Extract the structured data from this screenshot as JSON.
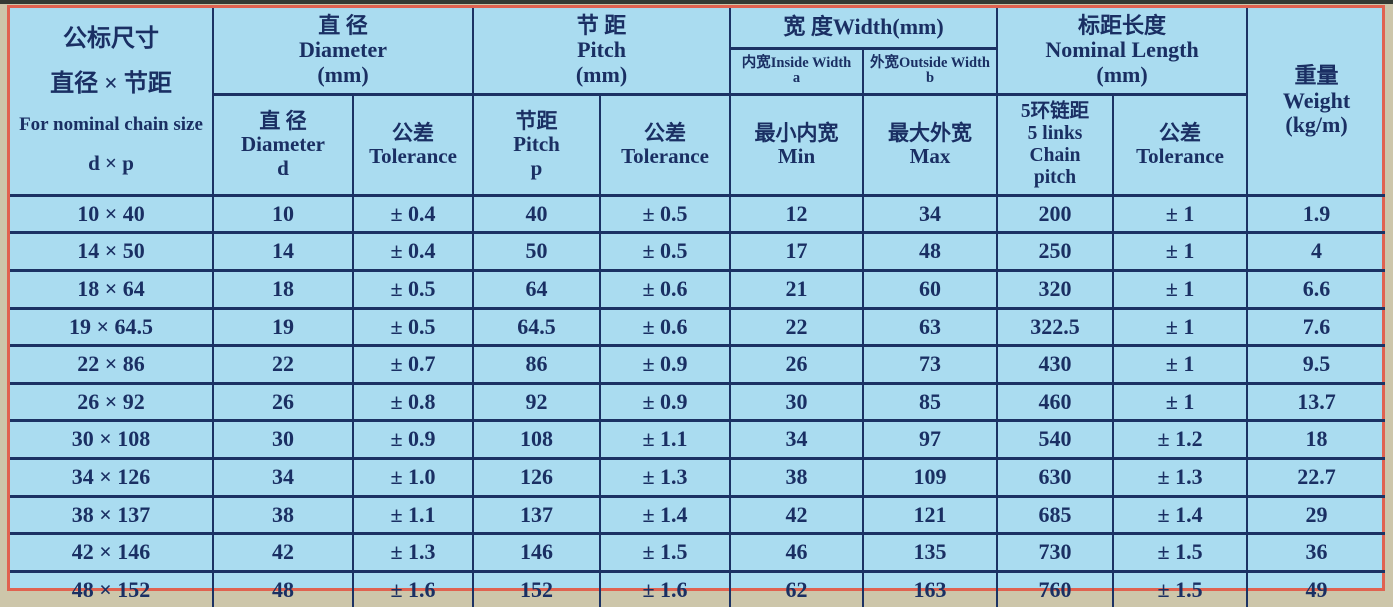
{
  "colors": {
    "cell_background": "#aadcf0",
    "grid_line": "#1c3264",
    "text": "#1a2f63",
    "outer_frame": "#e06250",
    "page_margin": "#cdc6aa"
  },
  "table": {
    "header": {
      "nominal": {
        "line1": "公标尺寸",
        "line2": "直径 × 节距",
        "line3": "For nominal chain size",
        "line4": "d × p"
      },
      "group_diameter": "直 径\nDiameter\n(mm)",
      "group_pitch": "节 距\nPitch\n(mm)",
      "group_width": "宽 度Width(mm)",
      "group_length": "标距长度\nNominal Length\n(mm)",
      "weight": "重量\nWeight\n(kg/m)",
      "width_inside": "内宽Inside Width\na",
      "width_outside": "外宽Outside Width\nb",
      "sub_diameter": "直 径\nDiameter\nd",
      "sub_diameter_tolerance": "公差\nTolerance",
      "sub_pitch": "节距\nPitch\np",
      "sub_pitch_tolerance": "公差\nTolerance",
      "sub_width_min": "最小内宽\nMin",
      "sub_width_max": "最大外宽\nMax",
      "sub_length_pitch": "5环链距\n5 links Chain\npitch",
      "sub_length_tolerance": "公差\nTolerance"
    },
    "rows": [
      [
        "10 × 40",
        "10",
        "± 0.4",
        "40",
        "± 0.5",
        "12",
        "34",
        "200",
        "± 1",
        "1.9"
      ],
      [
        "14 × 50",
        "14",
        "± 0.4",
        "50",
        "± 0.5",
        "17",
        "48",
        "250",
        "± 1",
        "4"
      ],
      [
        "18 × 64",
        "18",
        "± 0.5",
        "64",
        "± 0.6",
        "21",
        "60",
        "320",
        "± 1",
        "6.6"
      ],
      [
        "19 × 64.5",
        "19",
        "± 0.5",
        "64.5",
        "± 0.6",
        "22",
        "63",
        "322.5",
        "± 1",
        "7.6"
      ],
      [
        "22 × 86",
        "22",
        "± 0.7",
        "86",
        "± 0.9",
        "26",
        "73",
        "430",
        "± 1",
        "9.5"
      ],
      [
        "26 × 92",
        "26",
        "± 0.8",
        "92",
        "± 0.9",
        "30",
        "85",
        "460",
        "± 1",
        "13.7"
      ],
      [
        "30 × 108",
        "30",
        "± 0.9",
        "108",
        "± 1.1",
        "34",
        "97",
        "540",
        "± 1.2",
        "18"
      ],
      [
        "34 × 126",
        "34",
        "± 1.0",
        "126",
        "± 1.3",
        "38",
        "109",
        "630",
        "± 1.3",
        "22.7"
      ],
      [
        "38 × 137",
        "38",
        "± 1.1",
        "137",
        "± 1.4",
        "42",
        "121",
        "685",
        "± 1.4",
        "29"
      ],
      [
        "42 × 146",
        "42",
        "± 1.3",
        "146",
        "± 1.5",
        "46",
        "135",
        "730",
        "± 1.5",
        "36"
      ],
      [
        "48 × 152",
        "48",
        "± 1.6",
        "152",
        "± 1.6",
        "62",
        "163",
        "760",
        "± 1.5",
        "49"
      ]
    ]
  }
}
